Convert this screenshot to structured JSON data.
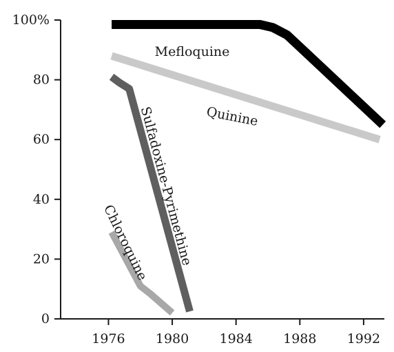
{
  "chart_data": {
    "type": "line",
    "title": "",
    "xlabel": "",
    "ylabel": "",
    "xlim": [
      1973,
      1993.3
    ],
    "ylim": [
      0,
      100
    ],
    "x_ticks": [
      1976,
      1980,
      1984,
      1988,
      1992
    ],
    "x_tick_labels": [
      "1976",
      "1980",
      "1984",
      "1988",
      "1992"
    ],
    "y_ticks": [
      0,
      20,
      40,
      60,
      80,
      100
    ],
    "y_tick_labels": [
      "0",
      "20",
      "40",
      "60",
      "80",
      "100%"
    ],
    "grid": false,
    "series": [
      {
        "name": "Mefloquine",
        "color": "#000000",
        "x": [
          1976.2,
          1985.5,
          1986.3,
          1987.2,
          1988.2,
          1993.2
        ],
        "y": [
          98.5,
          98.5,
          97.5,
          95,
          90,
          65
        ]
      },
      {
        "name": "Quinine",
        "color": "#c9c9c9",
        "x": [
          1976.2,
          1993.0
        ],
        "y": [
          88,
          60
        ]
      },
      {
        "name": "Sulfadoxine-Pyrimethine",
        "color": "#5f5f5f",
        "x": [
          1976.2,
          1976.7,
          1977.3,
          1981.1
        ],
        "y": [
          81,
          79,
          77,
          2.5
        ]
      },
      {
        "name": "Chloroquine",
        "color": "#a8a8a8",
        "x": [
          1976.2,
          1978.0,
          1978.6,
          1980.0
        ],
        "y": [
          29,
          11,
          8.5,
          2
        ]
      }
    ]
  }
}
